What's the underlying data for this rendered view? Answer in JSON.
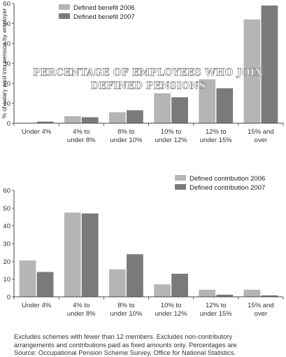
{
  "watermark": [
    "PERCENTAGE OF EMPLOYEES WHO JOIN",
    "DEFINED PENSIONS"
  ],
  "notes": [
    "Excludes schemes with fewer than 12 members. Excludes non-contributory",
    "arrangements and contributions paid as fixed amounts only. Percentages are",
    "Source: Occupational Pension Scheme Survey, Office for National Statistics."
  ],
  "colors": {
    "light": "#b5b5b5",
    "dark": "#7a7a7a",
    "axis": "#444444",
    "grid": "#dddddd"
  },
  "chart_data": [
    {
      "type": "bar",
      "title": "",
      "xlabel": "",
      "ylabel": "% of salary paid into pension by employer",
      "ylim": [
        0,
        60
      ],
      "yticks": [
        0,
        10,
        20,
        30,
        40,
        50,
        60
      ],
      "categories": [
        [
          "Under 4%"
        ],
        [
          "4% to",
          "under 8%"
        ],
        [
          "8% to",
          "under 10%"
        ],
        [
          "10% to",
          "under 12%"
        ],
        [
          "12% to",
          "under 15%"
        ],
        [
          "15% and",
          "over"
        ]
      ],
      "series": [
        {
          "name": "Defined benefit 2006",
          "color": "light",
          "values": [
            0.2,
            3.5,
            5.5,
            15,
            22,
            52
          ]
        },
        {
          "name": "Defined benefit 2007",
          "color": "dark",
          "values": [
            0.8,
            3,
            6.5,
            13,
            17.5,
            59
          ]
        }
      ],
      "legend": "top-left",
      "grid": false
    },
    {
      "type": "bar",
      "title": "",
      "xlabel": "",
      "ylabel": "",
      "ylim": [
        0,
        60
      ],
      "yticks": [
        0,
        10,
        20,
        30,
        40,
        50,
        60
      ],
      "categories": [
        [
          "Under 4%"
        ],
        [
          "4% to",
          "under 8%"
        ],
        [
          "8% to",
          "under 10%"
        ],
        [
          "10% to",
          "under 12%"
        ],
        [
          "12% to",
          "under 15%"
        ],
        [
          "15% and",
          "over"
        ]
      ],
      "series": [
        {
          "name": "Defined contribution 2006",
          "color": "light",
          "values": [
            20.5,
            47.5,
            15.5,
            7,
            4,
            4
          ]
        },
        {
          "name": "Defined contribution 2007",
          "color": "dark",
          "values": [
            14,
            47,
            24,
            13,
            1.2,
            0.8
          ]
        }
      ],
      "legend": "top-right",
      "grid": false
    }
  ]
}
